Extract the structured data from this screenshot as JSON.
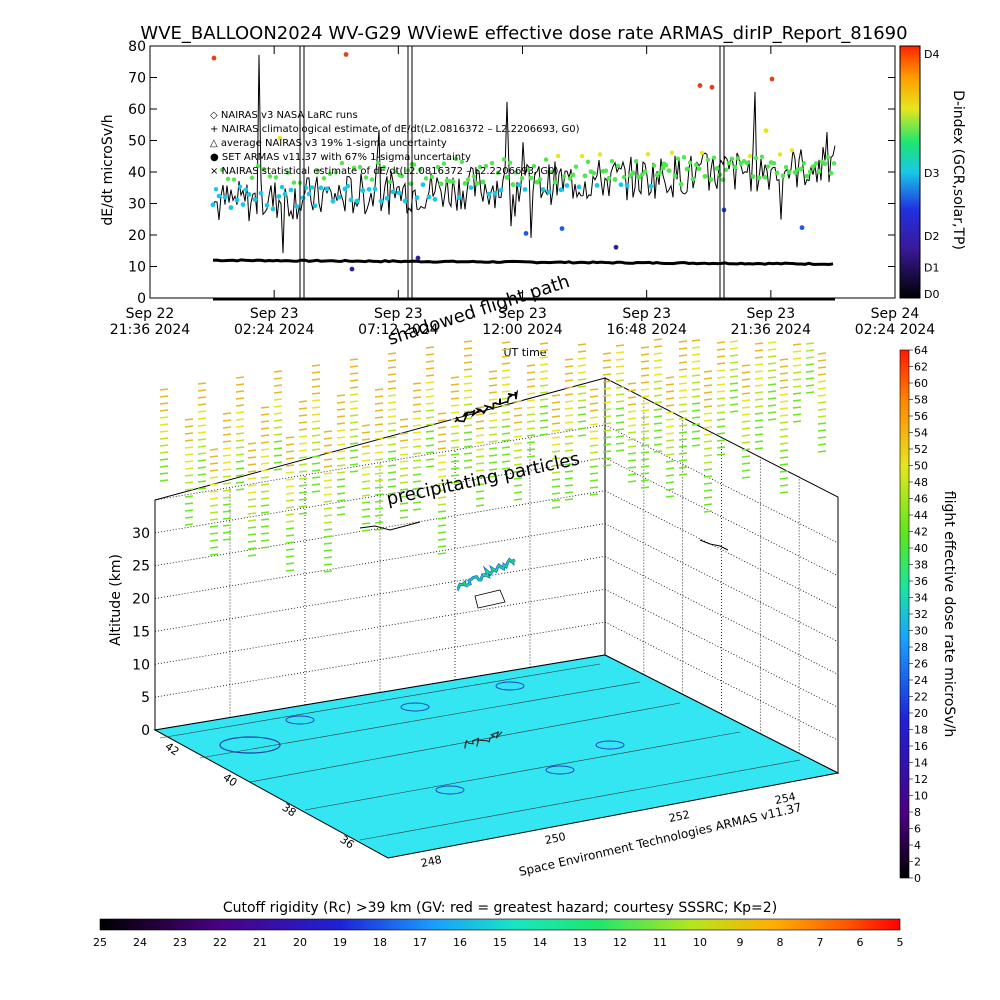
{
  "title": "WVE_BALLOON2024 WV-G29 WViewE effective dose rate ARMAS_dirIP_Report_81690",
  "top_panel": {
    "ylabel": "dE/dt microSv/h",
    "xlabel": "UT time",
    "y_ticks": [
      "80",
      "70",
      "60",
      "50",
      "40",
      "30",
      "20",
      "10",
      "0"
    ],
    "x_ticks": [
      {
        "top": "Sep 22",
        "bottom": "21:36 2024"
      },
      {
        "top": "Sep 23",
        "bottom": "02:24 2024"
      },
      {
        "top": "Sep 23",
        "bottom": "07:12 2024"
      },
      {
        "top": "Sep 23",
        "bottom": "12:00 2024"
      },
      {
        "top": "Sep 23",
        "bottom": "16:48 2024"
      },
      {
        "top": "Sep 23",
        "bottom": "21:36 2024"
      },
      {
        "top": "Sep 24",
        "bottom": "02:24 2024"
      }
    ],
    "legend": [
      "◇ NAIRAS v3 NASA LaRC runs",
      "+ NAIRAS climatological estimate of dE/dt(L2.0816372 – L2.2206693, G0)",
      "△ average NAIRAS v3 19% 1-sigma uncertainty",
      "● SET ARMAS v11.37 with 67% 1-sigma uncertainty",
      "× NAIRAS statistical estimate of dE/dt(L2.0816372 – L2.2206693, G0)"
    ],
    "right_label": "D-index (GCR,solar,TP)",
    "d_ticks": [
      "D4",
      "D3",
      "D2",
      "D1",
      "D0"
    ]
  },
  "chart_data": [
    {
      "type": "scatter",
      "title": "WVE_BALLOON2024 WV-G29 WViewE effective dose rate ARMAS_dirIP_Report_81690",
      "xlabel": "UT time",
      "ylabel": "dE/dt microSv/h",
      "ylim": [
        0,
        80
      ],
      "xlim": [
        "Sep 22 21:36 2024",
        "Sep 24 02:24 2024"
      ],
      "series": [
        {
          "name": "NAIRAS climatological estimate of dE/dt(L2.0816372 – L2.2206693, G0)",
          "x": [
            "Sep 22 23:48",
            "Sep 23 04:00",
            "Sep 23 10:00",
            "Sep 23 16:00",
            "Sep 23 21:00",
            "Sep 23 23:00"
          ],
          "values": [
            12.5,
            11.8,
            11.5,
            11.8,
            12.2,
            11.0
          ]
        },
        {
          "name": "SET ARMAS v11.37 with 67% 1-sigma uncertainty",
          "x": [
            "Sep 22 23:48",
            "Sep 23 02:24",
            "Sep 23 07:12",
            "Sep 23 12:00",
            "Sep 23 16:48",
            "Sep 23 21:36"
          ],
          "values": [
            32,
            35,
            40,
            38,
            44,
            41
          ]
        },
        {
          "name": "average NAIRAS v3 19% 1-sigma uncertainty",
          "x": [
            "Sep 22 23:48",
            "Sep 23 02:24",
            "Sep 23 07:12",
            "Sep 23 12:00",
            "Sep 23 16:48",
            "Sep 23 21:36"
          ],
          "values": [
            38,
            40,
            48,
            39,
            43,
            49
          ]
        }
      ],
      "legend": "top-left",
      "grid": false
    },
    {
      "type": "scatter",
      "title": "",
      "xlabel": "",
      "ylabel": "Altitude (km)",
      "zlim": [
        0,
        35
      ],
      "x_ticks": [
        "248",
        "250",
        "252",
        "254"
      ],
      "y_ticks": [
        "36",
        "38",
        "40",
        "42"
      ],
      "z_ticks": [
        "0",
        "5",
        "10",
        "15",
        "20",
        "25",
        "30"
      ],
      "colorbar": {
        "label": "flight effective dose rate microSv/h",
        "min": 0,
        "max": 64
      },
      "grid": true
    }
  ],
  "panel3d": {
    "ylabel": "Altitude (km)",
    "annotations": {
      "shadowed": "shadowed flight path",
      "precip": "precipitating particles"
    },
    "credit": "Space Environment Technologies ARMAS v11.37",
    "colorbar_label": "flight effective dose rate microSv/h",
    "colorbar_ticks": [
      "64",
      "62",
      "60",
      "58",
      "56",
      "54",
      "52",
      "50",
      "48",
      "46",
      "44",
      "42",
      "40",
      "38",
      "36",
      "34",
      "32",
      "30",
      "28",
      "26",
      "24",
      "22",
      "20",
      "18",
      "16",
      "14",
      "12",
      "10",
      "8",
      "6",
      "4",
      "2",
      "0"
    ],
    "alt_ticks": [
      "0",
      "5",
      "10",
      "15",
      "20",
      "25",
      "30"
    ],
    "lon_ticks": [
      "248",
      "250",
      "252",
      "254"
    ],
    "lat_ticks": [
      "42",
      "40",
      "38",
      "36"
    ]
  },
  "bottom_bar": {
    "title": "Cutoff rigidity (Rc) >39 km (GV: red = greatest hazard; courtesy SSSRC; Kp=2)",
    "ticks": [
      "25",
      "24",
      "23",
      "22",
      "21",
      "20",
      "19",
      "18",
      "17",
      "16",
      "15",
      "14",
      "13",
      "12",
      "11",
      "10",
      "9",
      "8",
      "7",
      "6",
      "5"
    ]
  },
  "colors": {
    "ground": "#33e6f2",
    "rainbow": [
      "#000000",
      "#4b0082",
      "#1e22d6",
      "#1a8cff",
      "#19d9e6",
      "#1ee66e",
      "#7be61e",
      "#e6e61e",
      "#ff9a00",
      "#ff2200",
      "#ff0000"
    ]
  }
}
